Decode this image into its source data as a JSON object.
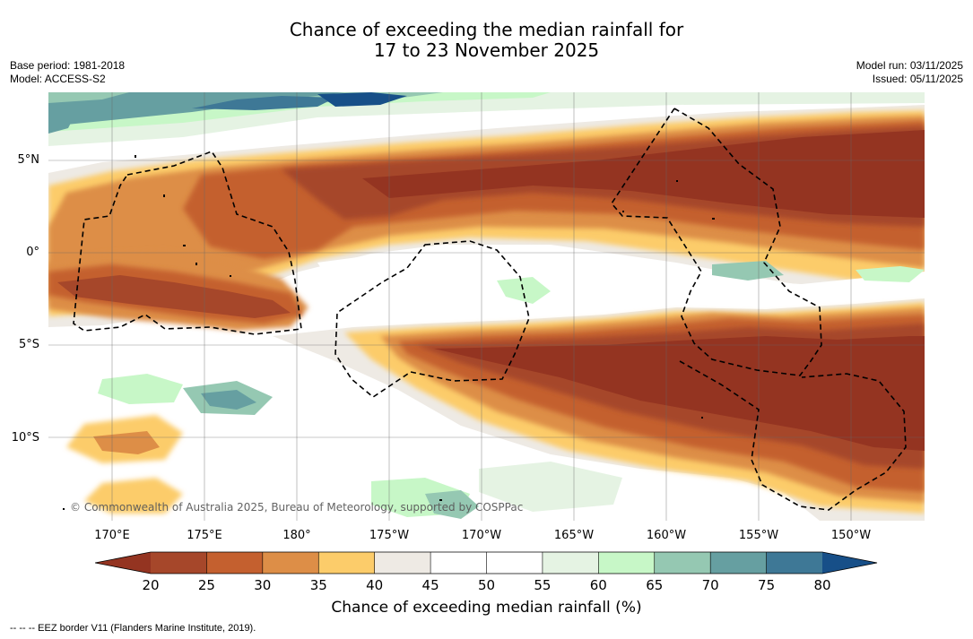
{
  "header": {
    "title_line1": "Chance of exceeding the median rainfall for",
    "title_line2": "17 to 23 November 2025",
    "base_period": "Base period: 1981-2018",
    "model": "Model: ACCESS-S2",
    "model_run": "Model run: 03/11/2025",
    "issued": "Issued: 05/11/2025"
  },
  "map": {
    "lat_labels": [
      "5°N",
      "0°",
      "5°S",
      "10°S"
    ],
    "lon_labels": [
      "170°E",
      "175°E",
      "180°",
      "175°W",
      "170°W",
      "165°W",
      "160°W",
      "155°W",
      "150°W"
    ],
    "copyright": "© Commonwealth of Australia 2025, Bureau of Meteorology, supported by COSPPac"
  },
  "legend": {
    "ticks": [
      "20",
      "25",
      "30",
      "35",
      "40",
      "45",
      "50",
      "55",
      "60",
      "65",
      "70",
      "75",
      "80"
    ],
    "colors": [
      "#a6472a",
      "#c4602f",
      "#dd8e47",
      "#fccc6a",
      "#eeeae4",
      "#ffffff",
      "#ffffff",
      "#e5f3e3",
      "#c7f7c7",
      "#95c8b2",
      "#669fa1",
      "#3e7896"
    ],
    "under_color": "#943421",
    "over_color": "#174f88",
    "label": "Chance of exceeding median rainfall (%)"
  },
  "footnote": "--  --  -- EEZ border V11 (Flanders Marine Institute, 2019)."
}
